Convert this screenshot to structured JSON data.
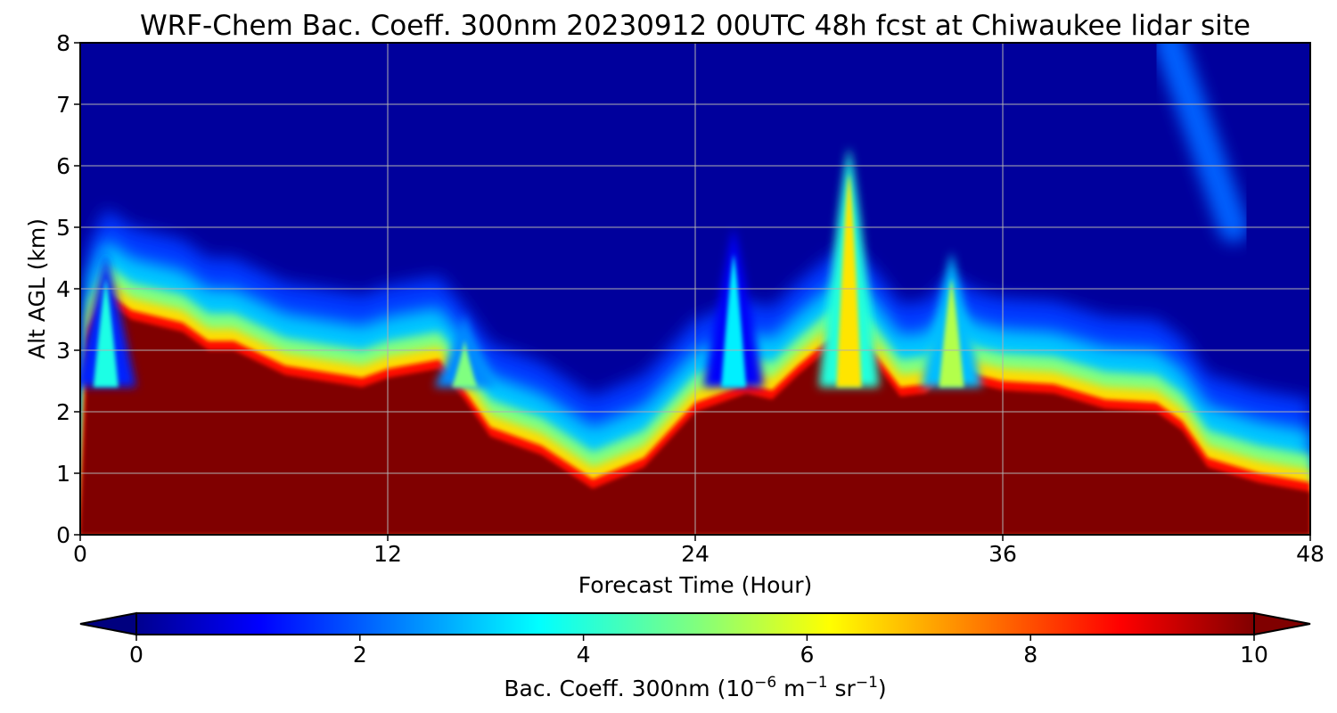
{
  "chart_data": {
    "type": "heatmap",
    "title": "WRF-Chem Bac. Coeff. 300nm  20230912 00UTC 48h fcst at Chiwaukee lidar site",
    "xlabel": "Forecast Time (Hour)",
    "ylabel": "Alt AGL (km)",
    "xlim": [
      0,
      48
    ],
    "ylim": [
      0,
      8
    ],
    "xticks": [
      0,
      12,
      24,
      36,
      48
    ],
    "yticks": [
      0,
      1,
      2,
      3,
      4,
      5,
      6,
      7,
      8
    ],
    "grid": true,
    "colorbar": {
      "label_prefix": "Bac. Coeff. 300nm  (10",
      "label_exp1": "−6",
      "label_mid": " m",
      "label_exp2": "−1",
      "label_mid2": " sr",
      "label_exp3": "−1",
      "label_suffix": ")",
      "range": [
        0,
        10
      ],
      "ticks": [
        0,
        2,
        4,
        6,
        8,
        10
      ],
      "extend": "both",
      "colormap": "jet"
    },
    "aerosol_top_km": {
      "hours": [
        0,
        0.3,
        1,
        2,
        4,
        5,
        6,
        8,
        11,
        12,
        14,
        15,
        16,
        18,
        20,
        22,
        24,
        26,
        27,
        28,
        29,
        30,
        31,
        32,
        33,
        34,
        35,
        36,
        38,
        40,
        42,
        43,
        44,
        46,
        48
      ],
      "top": [
        0,
        3.2,
        3.8,
        3.5,
        3.3,
        3.0,
        3.0,
        2.6,
        2.4,
        2.55,
        2.7,
        2.2,
        1.6,
        1.3,
        0.75,
        1.1,
        2.0,
        2.3,
        2.2,
        2.6,
        2.95,
        3.2,
        2.8,
        2.25,
        2.3,
        2.7,
        2.45,
        2.35,
        2.3,
        2.05,
        2.0,
        1.7,
        1.1,
        0.85,
        0.7
      ]
    },
    "plume_spikes": [
      {
        "hour": 30,
        "top_km": 6.3,
        "level": 6.5
      },
      {
        "hour": 34,
        "top_km": 4.6,
        "level": 5.5
      },
      {
        "hour": 25.5,
        "top_km": 5.0,
        "level": 3.6
      },
      {
        "hour": 1,
        "top_km": 4.6,
        "level": 4.0
      },
      {
        "hour": 15,
        "top_km": 3.6,
        "level": 5.0
      }
    ],
    "upper_plume": {
      "hour_start": 42.5,
      "alt_start_km": 8.0,
      "hour_end": 45,
      "alt_end_km": 5.0,
      "level": 2.2
    }
  }
}
